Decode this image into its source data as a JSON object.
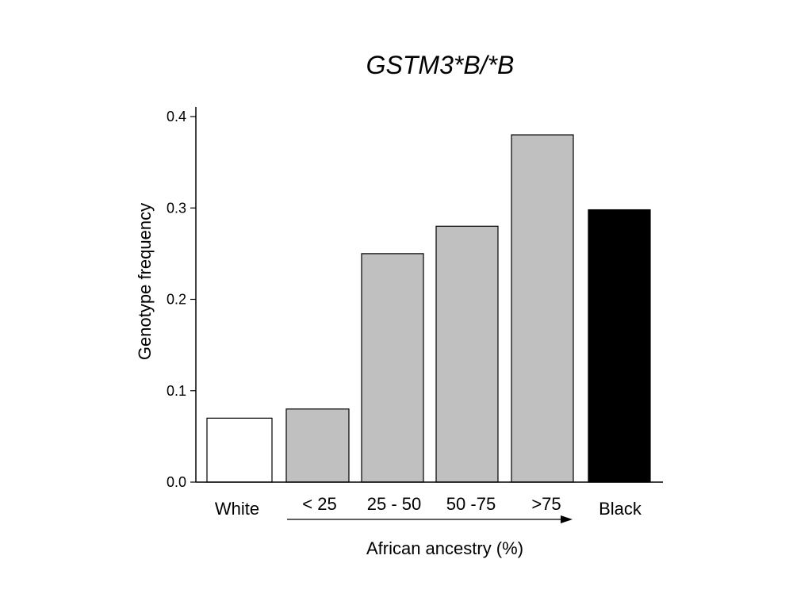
{
  "chart_data": {
    "type": "bar",
    "title": "GSTM3*B/*B",
    "xlabel": "African ancestry (%)",
    "ylabel": "Genotype  frequency",
    "ylim": [
      0,
      0.4
    ],
    "yticks": [
      "0.0",
      "0.1",
      "0.2",
      "0.3",
      "0.4"
    ],
    "categories": [
      "White",
      "< 25",
      "25 - 50",
      "50 -75",
      ">75",
      "Black"
    ],
    "values": [
      0.07,
      0.08,
      0.25,
      0.28,
      0.38,
      0.298
    ],
    "bar_colors": [
      "#ffffff",
      "#c0c0c0",
      "#c0c0c0",
      "#c0c0c0",
      "#c0c0c0",
      "#000000"
    ],
    "grid": false,
    "legend": "none"
  }
}
